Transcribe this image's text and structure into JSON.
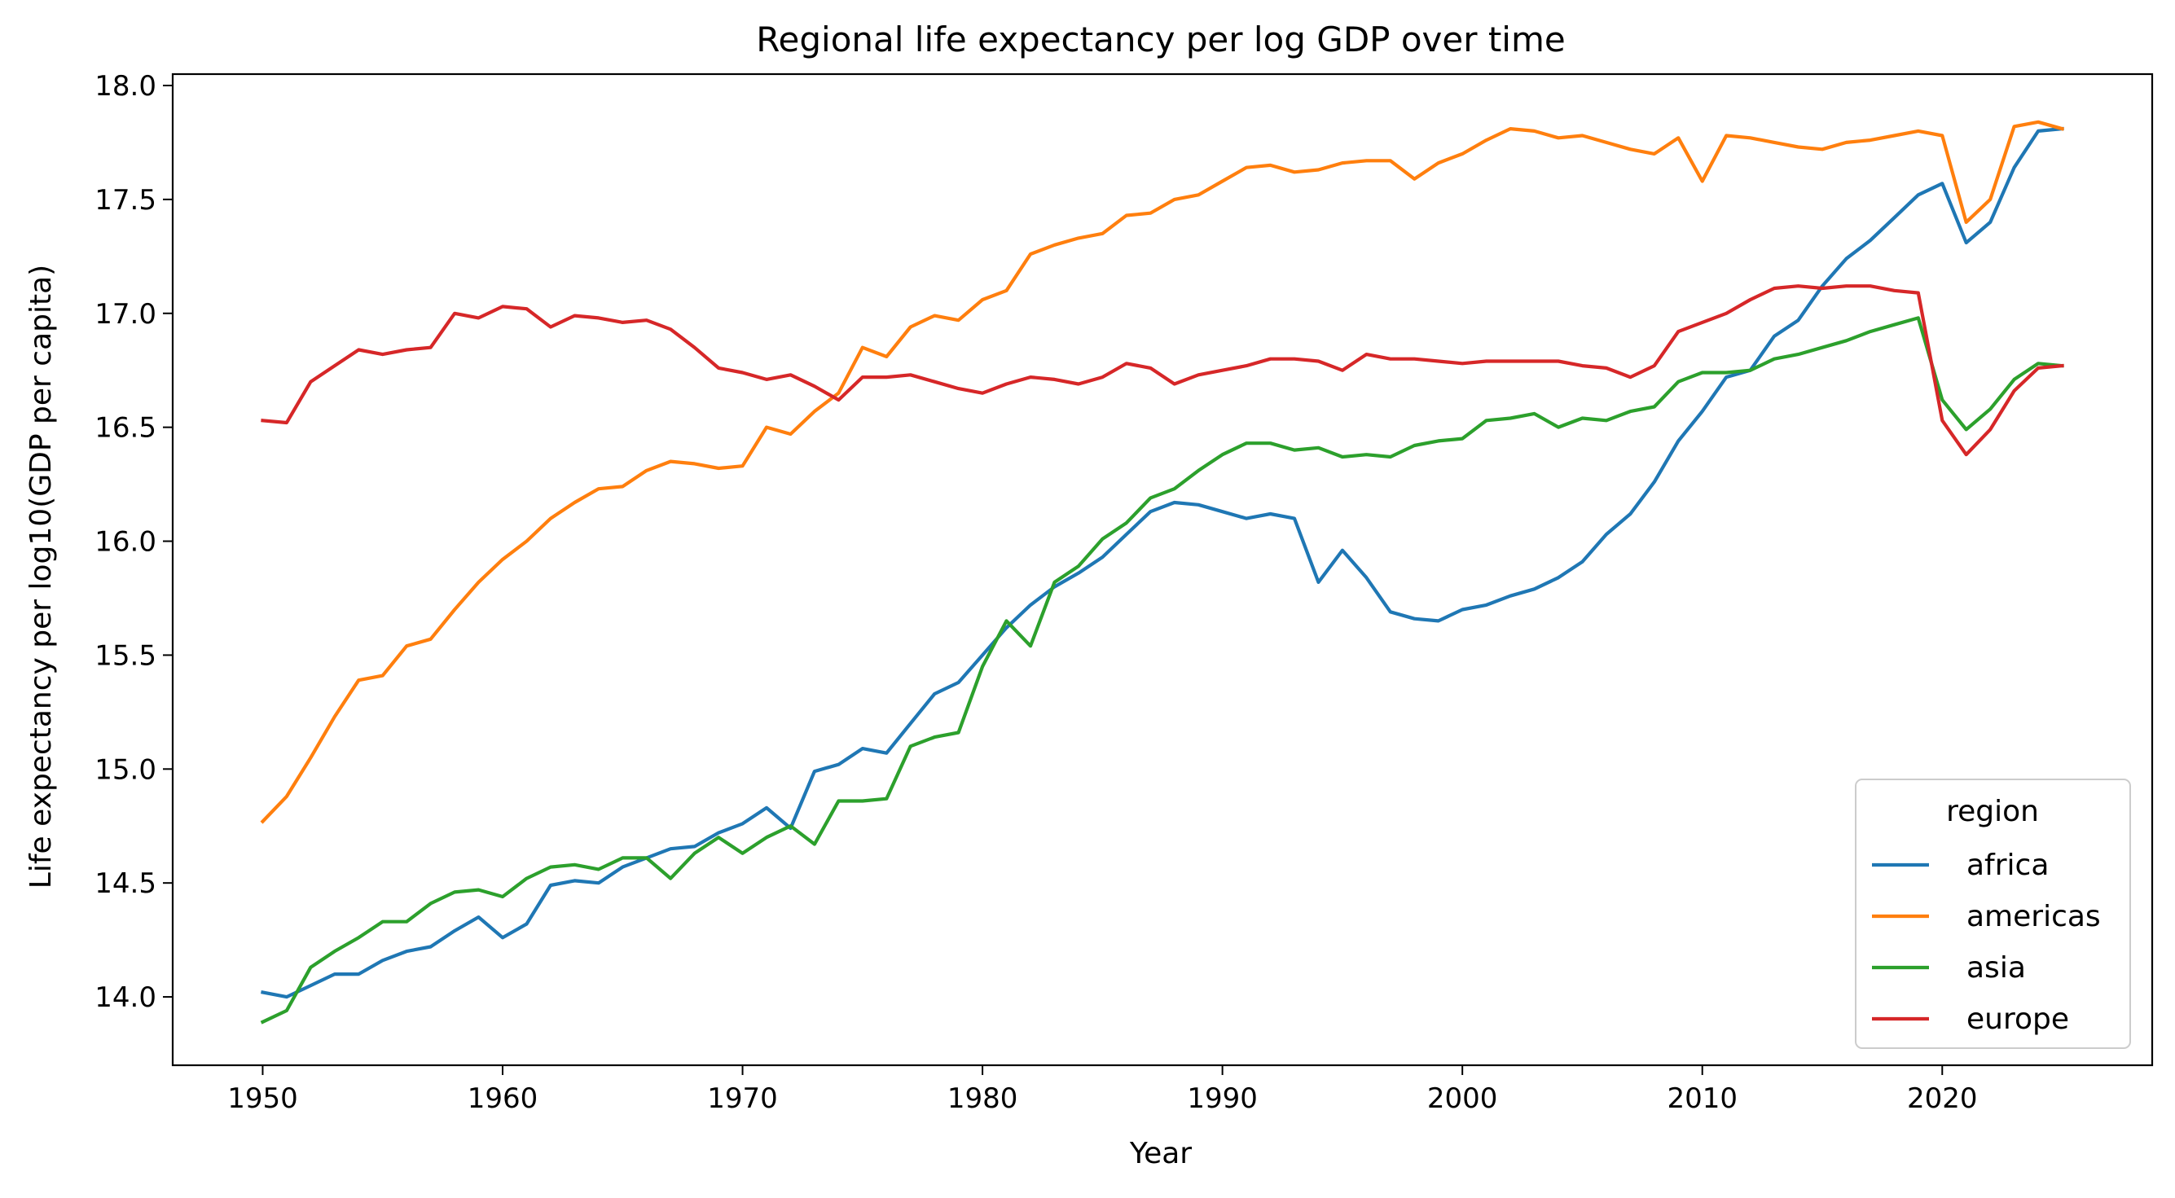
{
  "chart_data": {
    "type": "line",
    "title": "Regional life expectancy per log GDP over time",
    "xlabel": "Year",
    "ylabel": "Life expectancy per log10(GDP per capita)",
    "xlim": [
      1946.25,
      2028.75
    ],
    "ylim": [
      13.7,
      18.05
    ],
    "xticks": [
      1950,
      1960,
      1970,
      1980,
      1990,
      2000,
      2010,
      2020
    ],
    "yticks": [
      14.0,
      14.5,
      15.0,
      15.5,
      16.0,
      16.5,
      17.0,
      17.5,
      18.0
    ],
    "grid": false,
    "legend": {
      "title": "region",
      "position": "lower-right"
    },
    "x_start": 1950,
    "x_end": 2025,
    "series": [
      {
        "name": "africa",
        "color": "#1f77b4",
        "values": [
          14.02,
          14.0,
          14.05,
          14.1,
          14.1,
          14.16,
          14.2,
          14.22,
          14.29,
          14.35,
          14.26,
          14.32,
          14.49,
          14.51,
          14.5,
          14.57,
          14.61,
          14.65,
          14.66,
          14.72,
          14.76,
          14.83,
          14.74,
          14.99,
          15.02,
          15.09,
          15.07,
          15.2,
          15.33,
          15.38,
          15.5,
          15.62,
          15.72,
          15.8,
          15.86,
          15.93,
          16.03,
          16.13,
          16.17,
          16.16,
          16.13,
          16.1,
          16.12,
          16.1,
          15.82,
          15.96,
          15.84,
          15.69,
          15.66,
          15.65,
          15.7,
          15.72,
          15.76,
          15.79,
          15.84,
          15.91,
          16.03,
          16.12,
          16.26,
          16.44,
          16.57,
          16.72,
          16.75,
          16.9,
          16.97,
          17.12,
          17.24,
          17.32,
          17.42,
          17.52,
          17.57,
          17.31,
          17.4,
          17.64,
          17.8,
          17.81
        ]
      },
      {
        "name": "americas",
        "color": "#ff7f0e",
        "values": [
          14.77,
          14.88,
          15.05,
          15.23,
          15.39,
          15.41,
          15.54,
          15.57,
          15.7,
          15.82,
          15.92,
          16.0,
          16.1,
          16.17,
          16.23,
          16.24,
          16.31,
          16.35,
          16.34,
          16.32,
          16.33,
          16.5,
          16.47,
          16.57,
          16.65,
          16.85,
          16.81,
          16.94,
          16.99,
          16.97,
          17.06,
          17.1,
          17.26,
          17.3,
          17.33,
          17.35,
          17.43,
          17.44,
          17.5,
          17.52,
          17.58,
          17.64,
          17.65,
          17.62,
          17.63,
          17.66,
          17.67,
          17.67,
          17.59,
          17.66,
          17.7,
          17.76,
          17.81,
          17.8,
          17.77,
          17.78,
          17.75,
          17.72,
          17.7,
          17.77,
          17.58,
          17.78,
          17.77,
          17.75,
          17.73,
          17.72,
          17.75,
          17.76,
          17.78,
          17.8,
          17.78,
          17.4,
          17.5,
          17.82,
          17.84,
          17.81
        ]
      },
      {
        "name": "asia",
        "color": "#2ca02c",
        "values": [
          13.89,
          13.94,
          14.13,
          14.2,
          14.26,
          14.33,
          14.33,
          14.41,
          14.46,
          14.47,
          14.44,
          14.52,
          14.57,
          14.58,
          14.56,
          14.61,
          14.61,
          14.52,
          14.63,
          14.7,
          14.63,
          14.7,
          14.75,
          14.67,
          14.86,
          14.86,
          14.87,
          15.1,
          15.14,
          15.16,
          15.45,
          15.65,
          15.54,
          15.82,
          15.89,
          16.01,
          16.08,
          16.19,
          16.23,
          16.31,
          16.38,
          16.43,
          16.43,
          16.4,
          16.41,
          16.37,
          16.38,
          16.37,
          16.42,
          16.44,
          16.45,
          16.53,
          16.54,
          16.56,
          16.5,
          16.54,
          16.53,
          16.57,
          16.59,
          16.7,
          16.74,
          16.74,
          16.75,
          16.8,
          16.82,
          16.85,
          16.88,
          16.92,
          16.95,
          16.98,
          16.62,
          16.49,
          16.58,
          16.71,
          16.78,
          16.77
        ]
      },
      {
        "name": "europe",
        "color": "#d62728",
        "values": [
          16.53,
          16.52,
          16.7,
          16.77,
          16.84,
          16.82,
          16.84,
          16.85,
          17.0,
          16.98,
          17.03,
          17.02,
          16.94,
          16.99,
          16.98,
          16.96,
          16.97,
          16.93,
          16.85,
          16.76,
          16.74,
          16.71,
          16.73,
          16.68,
          16.62,
          16.72,
          16.72,
          16.73,
          16.7,
          16.67,
          16.65,
          16.69,
          16.72,
          16.71,
          16.69,
          16.72,
          16.78,
          16.76,
          16.69,
          16.73,
          16.75,
          16.77,
          16.8,
          16.8,
          16.79,
          16.75,
          16.82,
          16.8,
          16.8,
          16.79,
          16.78,
          16.79,
          16.79,
          16.79,
          16.79,
          16.77,
          16.76,
          16.72,
          16.77,
          16.92,
          16.96,
          17.0,
          17.06,
          17.11,
          17.12,
          17.11,
          17.12,
          17.12,
          17.1,
          17.09,
          16.53,
          16.38,
          16.49,
          16.66,
          16.76,
          16.77
        ]
      }
    ]
  }
}
